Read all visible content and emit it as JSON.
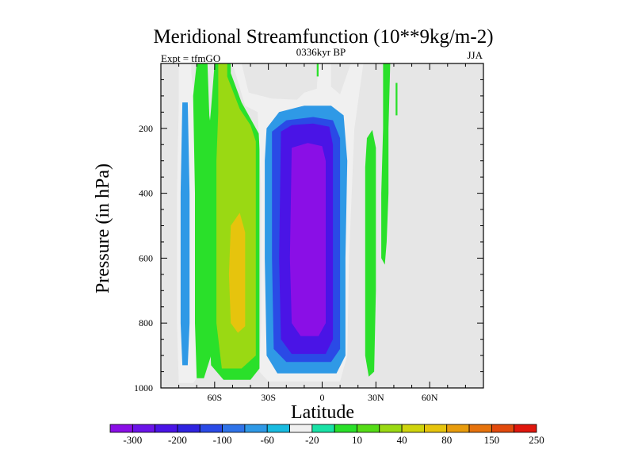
{
  "chart_data": {
    "type": "contour",
    "title": "Meridional Streamfunction (10**9kg/m-2)",
    "subtitle_left": "Expt = tfmGO",
    "subtitle_center": "0336kyr BP",
    "subtitle_right": "JJA",
    "xlabel": "Latitude",
    "ylabel": "Pressure (in hPa)",
    "xlim": [
      -90,
      90
    ],
    "ylim": [
      0,
      1000
    ],
    "y_reversed": true,
    "x_ticks": [
      {
        "value": -60,
        "label": "60S"
      },
      {
        "value": -30,
        "label": "30S"
      },
      {
        "value": 0,
        "label": "0"
      },
      {
        "value": 30,
        "label": "30N"
      },
      {
        "value": 60,
        "label": "60N"
      }
    ],
    "y_ticks": [
      {
        "value": 200,
        "label": "200"
      },
      {
        "value": 400,
        "label": "400"
      },
      {
        "value": 600,
        "label": "600"
      },
      {
        "value": 800,
        "label": "800"
      },
      {
        "value": 1000,
        "label": "1000"
      }
    ],
    "background_color": "#e6e6e6",
    "colorbar": {
      "colors": [
        "#8a0fe6",
        "#6b14e8",
        "#4a14e6",
        "#2f23e0",
        "#2a4ae6",
        "#2f73e8",
        "#2f99e6",
        "#19bbe0",
        "#f0f0f0",
        "#19e2a6",
        "#2ae02a",
        "#55dc17",
        "#9ad913",
        "#cfd40d",
        "#e6c40d",
        "#e89c0d",
        "#e6730d",
        "#e24a0d",
        "#e0170d"
      ],
      "labels": [
        "-300",
        "-200",
        "-100",
        "-60",
        "-20",
        "10",
        "40",
        "80",
        "150",
        "250"
      ]
    },
    "regions": [
      {
        "level": -20,
        "points": [
          [
            -80,
            0
          ],
          [
            -73,
            0
          ],
          [
            -73,
            30
          ],
          [
            -71,
            120
          ],
          [
            -70,
            400
          ],
          [
            -70,
            800
          ],
          [
            -70,
            970
          ],
          [
            -72,
            985
          ],
          [
            -80,
            985
          ],
          [
            -81,
            800
          ],
          [
            -81,
            400
          ],
          [
            -80,
            120
          ]
        ]
      },
      {
        "level": -60,
        "points": [
          [
            -78,
            120
          ],
          [
            -75,
            120
          ],
          [
            -74,
            400
          ],
          [
            -74,
            800
          ],
          [
            -75,
            930
          ],
          [
            -78,
            930
          ],
          [
            -79,
            800
          ],
          [
            -79,
            400
          ]
        ]
      },
      {
        "level": 10,
        "points": [
          [
            -70,
            0
          ],
          [
            -64,
            0
          ],
          [
            -63,
            160
          ],
          [
            -62,
            200
          ],
          [
            -62,
            900
          ],
          [
            -66,
            970
          ],
          [
            -70,
            970
          ],
          [
            -71,
            800
          ],
          [
            -71,
            400
          ],
          [
            -72,
            100
          ]
        ]
      },
      {
        "level": 10,
        "points": [
          [
            -60,
            0
          ],
          [
            -51,
            0
          ],
          [
            -51,
            30
          ],
          [
            -45,
            120
          ],
          [
            -40,
            170
          ],
          [
            -35,
            220
          ],
          [
            -35,
            940
          ],
          [
            -40,
            975
          ],
          [
            -55,
            975
          ],
          [
            -62,
            930
          ],
          [
            -63,
            800
          ],
          [
            -63,
            200
          ],
          [
            -62,
            140
          ]
        ]
      },
      {
        "level": 40,
        "points": [
          [
            -58,
            0
          ],
          [
            -53,
            0
          ],
          [
            -53,
            40
          ],
          [
            -46,
            140
          ],
          [
            -40,
            190
          ],
          [
            -37,
            240
          ],
          [
            -37,
            900
          ],
          [
            -45,
            940
          ],
          [
            -56,
            940
          ],
          [
            -59,
            800
          ],
          [
            -59,
            300
          ],
          [
            -58,
            150
          ]
        ]
      },
      {
        "level": 80,
        "points": [
          [
            -51,
            500
          ],
          [
            -46,
            460
          ],
          [
            -43,
            520
          ],
          [
            -43,
            810
          ],
          [
            -47,
            830
          ],
          [
            -51,
            800
          ],
          [
            -52,
            650
          ]
        ]
      },
      {
        "level": -20,
        "points": [
          [
            -50,
            0
          ],
          [
            -45,
            0
          ],
          [
            -41,
            90
          ],
          [
            -28,
            108
          ],
          [
            -14,
            112
          ],
          [
            -10,
            90
          ],
          [
            -3,
            78
          ],
          [
            -2,
            0
          ],
          [
            5,
            0
          ],
          [
            5,
            72
          ],
          [
            10,
            95
          ],
          [
            16,
            0
          ],
          [
            23,
            0
          ],
          [
            20,
            120
          ],
          [
            18,
            200
          ],
          [
            15,
            600
          ],
          [
            14,
            900
          ],
          [
            10,
            980
          ],
          [
            -30,
            980
          ],
          [
            -35,
            950
          ],
          [
            -34,
            800
          ],
          [
            -34,
            400
          ],
          [
            -35,
            260
          ],
          [
            -36,
            150
          ],
          [
            -43,
            130
          ]
        ]
      },
      {
        "level": -60,
        "points": [
          [
            -31,
            200
          ],
          [
            -24,
            150
          ],
          [
            -10,
            130
          ],
          [
            5,
            130
          ],
          [
            12,
            160
          ],
          [
            14,
            300
          ],
          [
            13,
            600
          ],
          [
            13,
            900
          ],
          [
            8,
            955
          ],
          [
            -25,
            955
          ],
          [
            -31,
            900
          ],
          [
            -32,
            600
          ],
          [
            -32,
            300
          ]
        ]
      },
      {
        "level": -100,
        "points": [
          [
            -28,
            210
          ],
          [
            -20,
            175
          ],
          [
            -5,
            165
          ],
          [
            6,
            175
          ],
          [
            10,
            230
          ],
          [
            10,
            600
          ],
          [
            10,
            880
          ],
          [
            5,
            920
          ],
          [
            -20,
            920
          ],
          [
            -27,
            880
          ],
          [
            -28,
            600
          ]
        ]
      },
      {
        "level": -200,
        "points": [
          [
            -23,
            210
          ],
          [
            -17,
            190
          ],
          [
            -5,
            185
          ],
          [
            4,
            195
          ],
          [
            6,
            250
          ],
          [
            6,
            600
          ],
          [
            6,
            850
          ],
          [
            2,
            895
          ],
          [
            -17,
            895
          ],
          [
            -23,
            850
          ],
          [
            -24,
            600
          ]
        ]
      },
      {
        "level": -300,
        "points": [
          [
            -17,
            260
          ],
          [
            -8,
            245
          ],
          [
            0,
            255
          ],
          [
            2,
            300
          ],
          [
            2,
            600
          ],
          [
            2,
            800
          ],
          [
            -2,
            840
          ],
          [
            -12,
            840
          ],
          [
            -17,
            800
          ],
          [
            -18,
            600
          ]
        ]
      },
      {
        "level": 10,
        "points": [
          [
            -3,
            0
          ],
          [
            -2,
            0
          ],
          [
            -2,
            40
          ],
          [
            -3,
            40
          ]
        ]
      },
      {
        "level": 10,
        "points": [
          [
            24,
            320
          ],
          [
            25,
            230
          ],
          [
            28,
            205
          ],
          [
            30,
            260
          ],
          [
            30,
            700
          ],
          [
            29,
            950
          ],
          [
            26,
            965
          ],
          [
            24,
            900
          ]
        ]
      },
      {
        "level": 10,
        "points": [
          [
            34,
            0
          ],
          [
            38,
            0
          ],
          [
            37,
            200
          ],
          [
            37,
            400
          ],
          [
            36,
            550
          ],
          [
            35,
            620
          ],
          [
            33,
            600
          ],
          [
            33,
            400
          ],
          [
            34,
            200
          ]
        ]
      },
      {
        "level": 10,
        "points": [
          [
            41,
            60
          ],
          [
            42,
            60
          ],
          [
            42,
            160
          ],
          [
            41,
            160
          ]
        ]
      }
    ]
  }
}
